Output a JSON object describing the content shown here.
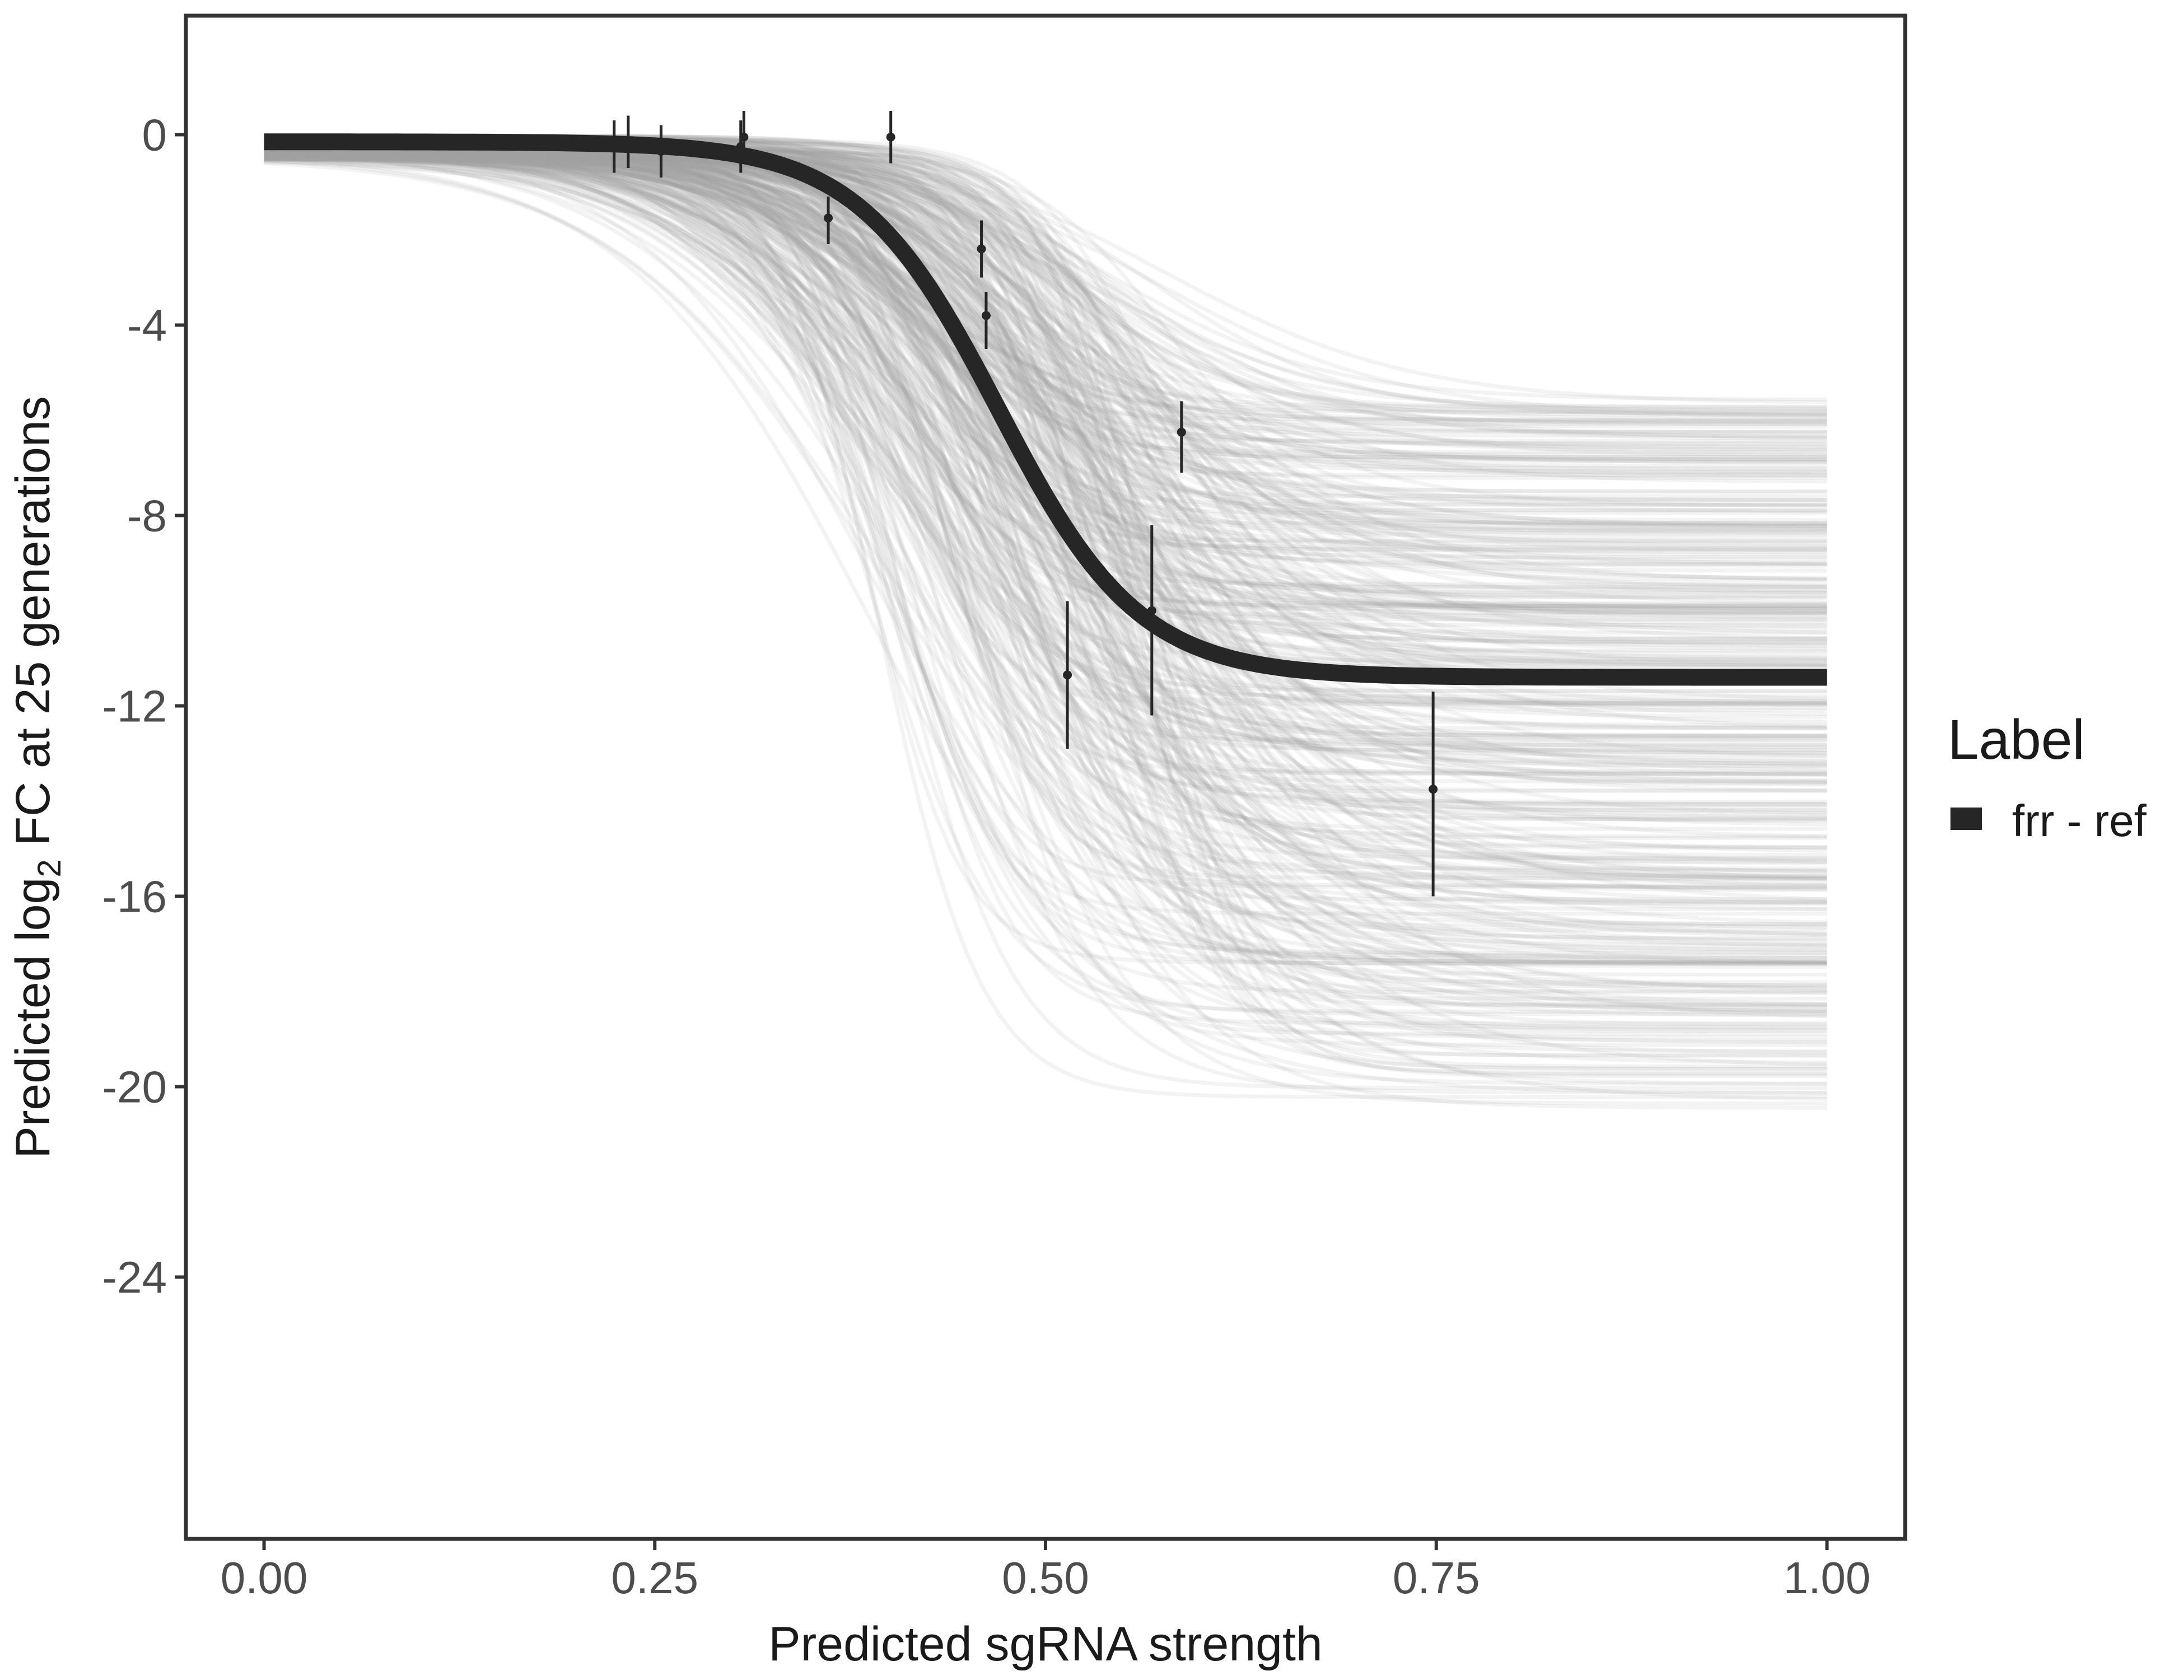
{
  "chart_data": {
    "type": "line",
    "title": "",
    "xlabel": "Predicted sgRNA strength",
    "ylabel": {
      "prefix": "Predicted  log",
      "subscript": "2",
      "suffix": " FC at 25 generations"
    },
    "xlim": [
      -0.05,
      1.05
    ],
    "ylim": [
      -29.5,
      2.5
    ],
    "x_ticks": [
      0.0,
      0.25,
      0.5,
      0.75,
      1.0
    ],
    "x_tick_labels": [
      "0.00",
      "0.25",
      "0.50",
      "0.75",
      "1.00"
    ],
    "y_ticks": [
      0,
      -4,
      -8,
      -12,
      -16,
      -20,
      -24
    ],
    "y_tick_labels": [
      "0",
      "-4",
      "-8",
      "-12",
      "-16",
      "-20",
      "-24"
    ],
    "grid": false,
    "legend": {
      "title": "Label",
      "position": "right",
      "entries": [
        {
          "label": "frr - ref",
          "color": "#262626"
        }
      ]
    },
    "fit_curve": {
      "name": "frr - ref",
      "model": "logistic",
      "upper": -0.15,
      "lower": -11.4,
      "midpoint": 0.47,
      "scale": 0.045,
      "color": "#262626"
    },
    "posterior_draws": {
      "count": 400,
      "color": "#a6a6a6",
      "opacity": 0.13,
      "lower_range": [
        -20.5,
        -5.5
      ],
      "midpoint_range": [
        0.38,
        0.58
      ],
      "scale_range": [
        0.028,
        0.085
      ]
    },
    "points": [
      {
        "x": 0.224,
        "y": -0.2,
        "ymin": -0.8,
        "ymax": 0.3
      },
      {
        "x": 0.233,
        "y": -0.2,
        "ymin": -0.7,
        "ymax": 0.4
      },
      {
        "x": 0.254,
        "y": -0.35,
        "ymin": -0.9,
        "ymax": 0.2
      },
      {
        "x": 0.305,
        "y": -0.25,
        "ymin": -0.8,
        "ymax": 0.3
      },
      {
        "x": 0.307,
        "y": -0.05,
        "ymin": -0.5,
        "ymax": 0.5
      },
      {
        "x": 0.361,
        "y": -1.75,
        "ymin": -2.3,
        "ymax": -1.3
      },
      {
        "x": 0.401,
        "y": -0.05,
        "ymin": -0.6,
        "ymax": 0.5
      },
      {
        "x": 0.459,
        "y": -2.4,
        "ymin": -3.0,
        "ymax": -1.8
      },
      {
        "x": 0.462,
        "y": -3.8,
        "ymin": -4.5,
        "ymax": -3.3
      },
      {
        "x": 0.514,
        "y": -11.35,
        "ymin": -12.9,
        "ymax": -9.8
      },
      {
        "x": 0.568,
        "y": -10.0,
        "ymin": -12.2,
        "ymax": -8.2
      },
      {
        "x": 0.587,
        "y": -6.25,
        "ymin": -7.1,
        "ymax": -5.6
      },
      {
        "x": 0.748,
        "y": -13.75,
        "ymin": -16.0,
        "ymax": -11.7
      }
    ]
  }
}
